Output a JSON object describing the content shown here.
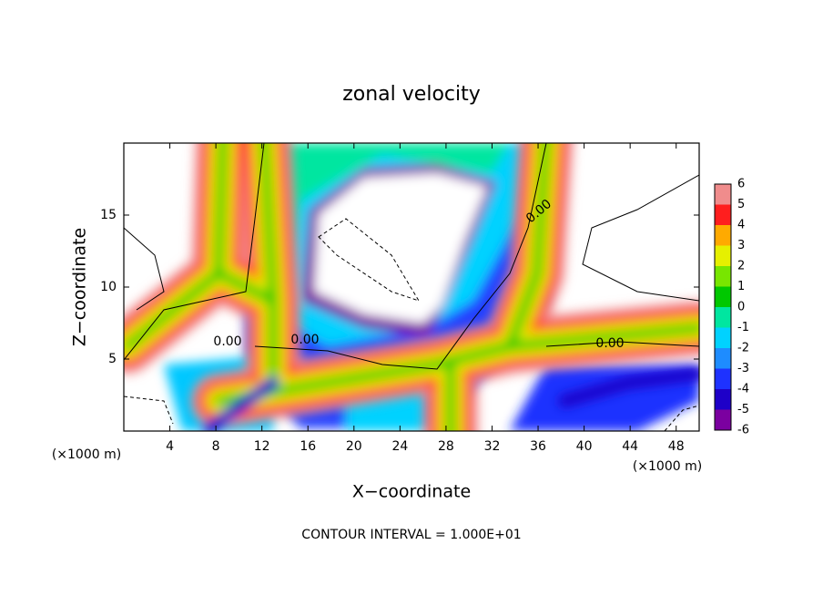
{
  "chart_data": {
    "type": "contour",
    "title": "zonal velocity",
    "x_label": "X−coordinate",
    "y_label": "Z−coordinate",
    "unit_labels": [
      "(×1000 m)",
      "(×1000 m)"
    ],
    "footnote": "CONTOUR INTERVAL = 1.000E+01",
    "xlim": [
      0,
      50
    ],
    "xticks": [
      4,
      8,
      12,
      16,
      20,
      24,
      28,
      32,
      36,
      40,
      44,
      48
    ],
    "ylim": [
      0,
      20
    ],
    "yticks": [
      5,
      10,
      15
    ],
    "contour_labels": [
      "0.00",
      "0.00",
      "0.00",
      "0.00"
    ],
    "colorbar": {
      "levels": [
        -6,
        -5,
        -4,
        -3,
        -2,
        -1,
        0,
        1,
        2,
        3,
        4,
        5,
        6
      ],
      "colors": [
        "#7b00a0",
        "#1e00c8",
        "#1e32ff",
        "#1e8cff",
        "#00d2ff",
        "#00e6a0",
        "#00c800",
        "#78e600",
        "#e6f000",
        "#ffaa00",
        "#ff1e1e",
        "#f08c8c"
      ]
    }
  }
}
